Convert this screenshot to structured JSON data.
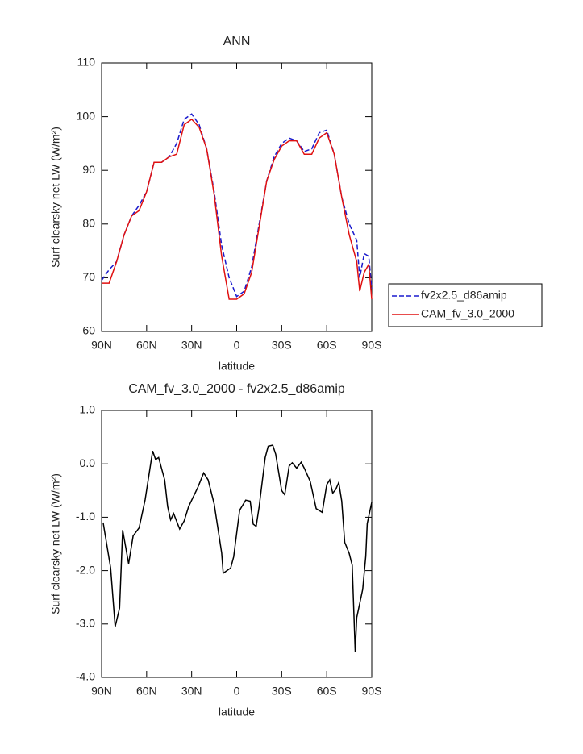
{
  "chart_data": [
    {
      "type": "line",
      "title": "ANN",
      "xlabel": "latitude",
      "ylabel": "Surf clearsky net LW (W/m²)",
      "x": [
        90,
        85,
        80,
        75,
        70,
        65,
        60,
        55,
        50,
        45,
        40,
        35,
        30,
        25,
        20,
        15,
        10,
        5,
        0,
        -5,
        -10,
        -15,
        -20,
        -25,
        -30,
        -35,
        -40,
        -45,
        -50,
        -55,
        -60,
        -65,
        -70,
        -75,
        -80,
        -82,
        -85,
        -88,
        -90
      ],
      "series": [
        {
          "name": "fv2x2.5_d86amip",
          "color": "#1a1acd",
          "style": "dashed",
          "values": [
            69.5,
            71.5,
            73,
            78,
            81.5,
            83.5,
            86,
            91.5,
            91.5,
            92.5,
            95,
            99.5,
            100.5,
            98.5,
            94,
            86,
            76,
            70,
            66.5,
            67.5,
            72,
            80,
            88,
            92.5,
            95,
            96,
            95.5,
            93.5,
            94,
            97,
            97.5,
            93,
            85,
            80,
            77,
            70,
            74.5,
            74,
            68
          ]
        },
        {
          "name": "CAM_fv_3.0_2000",
          "color": "#e01010",
          "style": "solid",
          "values": [
            69,
            69,
            73,
            78,
            81.5,
            82.5,
            86,
            91.5,
            91.5,
            92.5,
            93,
            98.5,
            99.5,
            98,
            94,
            85.5,
            74,
            66,
            66,
            67,
            71,
            79.5,
            88,
            92,
            94.5,
            95.5,
            95.5,
            93,
            93,
            96,
            97,
            93,
            85,
            78,
            73,
            67.5,
            71,
            72.5,
            66
          ]
        }
      ],
      "xlim": [
        90,
        -90
      ],
      "xticks": [
        {
          "value": 90,
          "label": "90N"
        },
        {
          "value": 60,
          "label": "60N"
        },
        {
          "value": 30,
          "label": "30N"
        },
        0,
        {
          "value": -30,
          "label": "30S"
        },
        {
          "value": -60,
          "label": "60S"
        },
        {
          "value": -90,
          "label": "90S"
        }
      ],
      "ylim": [
        60,
        110
      ],
      "yticks": [
        60,
        70,
        80,
        90,
        100,
        110
      ],
      "legend": "right"
    },
    {
      "type": "line",
      "title": "CAM_fv_3.0_2000 - fv2x2.5_d86amip",
      "xlabel": "latitude",
      "ylabel": "Surf clearsky net LW (W/m²)",
      "x": [
        89,
        84,
        81,
        78,
        76,
        72,
        69,
        65,
        61,
        56,
        54,
        52,
        48,
        46,
        44,
        42,
        38,
        35,
        32,
        26,
        22,
        19,
        15,
        10,
        9,
        4,
        2,
        0,
        -2,
        -6,
        -9,
        -11,
        -13,
        -15,
        -19,
        -21,
        -24,
        -26,
        -30,
        -32,
        -35,
        -37,
        -40,
        -43,
        -45,
        -49,
        -53,
        -57,
        -60,
        -62,
        -64,
        -66,
        -68,
        -70,
        -72,
        -75,
        -77,
        -79,
        -80,
        -84,
        -86,
        -87,
        -90
      ],
      "color": "#000000",
      "values": [
        -1.1,
        -1.95,
        -3.05,
        -2.7,
        -1.24,
        -1.87,
        -1.35,
        -1.2,
        -0.67,
        0.24,
        0.08,
        0.12,
        -0.3,
        -0.8,
        -1.05,
        -0.93,
        -1.22,
        -1.07,
        -0.8,
        -0.45,
        -0.17,
        -0.3,
        -0.75,
        -1.67,
        -2.05,
        -1.95,
        -1.74,
        -1.3,
        -0.87,
        -0.68,
        -0.7,
        -1.13,
        -1.17,
        -0.8,
        0.12,
        0.33,
        0.35,
        0.18,
        -0.5,
        -0.58,
        -0.04,
        0.02,
        -0.08,
        0.03,
        -0.08,
        -0.33,
        -0.84,
        -0.91,
        -0.39,
        -0.3,
        -0.55,
        -0.48,
        -0.35,
        -0.7,
        -1.47,
        -1.68,
        -1.9,
        -3.52,
        -2.88,
        -2.35,
        -1.73,
        -1.12,
        -0.72
      ],
      "xlim": [
        90,
        -90
      ],
      "xticks": [
        {
          "value": 90,
          "label": "90N"
        },
        {
          "value": 60,
          "label": "60N"
        },
        {
          "value": 30,
          "label": "30N"
        },
        0,
        {
          "value": -30,
          "label": "30S"
        },
        {
          "value": -60,
          "label": "60S"
        },
        {
          "value": -90,
          "label": "90S"
        }
      ],
      "ylim": [
        -4,
        1
      ],
      "yticks": [
        {
          "value": -4,
          "label": "-4.0"
        },
        {
          "value": -3,
          "label": "-3.0"
        },
        {
          "value": -2,
          "label": "-2.0"
        },
        {
          "value": -1,
          "label": "-1.0"
        },
        {
          "value": 0,
          "label": "0.0"
        },
        {
          "value": 1,
          "label": "1.0"
        }
      ]
    }
  ]
}
